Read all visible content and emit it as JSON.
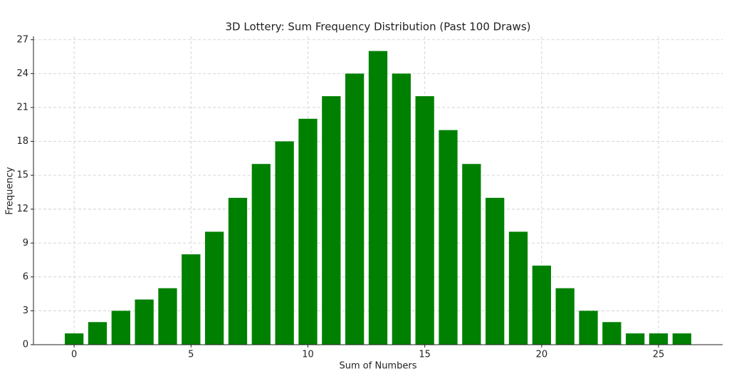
{
  "chart_data": {
    "type": "bar",
    "title": "3D Lottery: Sum Frequency Distribution (Past 100 Draws)",
    "x_label": "Sum of Numbers",
    "y_label": "Frequency",
    "x": [
      0,
      1,
      2,
      3,
      4,
      5,
      6,
      7,
      8,
      9,
      10,
      11,
      12,
      13,
      14,
      15,
      16,
      17,
      18,
      19,
      20,
      21,
      22,
      23,
      24,
      25,
      26
    ],
    "values": [
      1,
      2,
      3,
      4,
      5,
      8,
      10,
      13,
      16,
      18,
      20,
      22,
      24,
      26,
      24,
      22,
      19,
      16,
      13,
      10,
      7,
      5,
      3,
      2,
      1,
      1,
      1
    ],
    "color": "#008000",
    "xlim": [
      -1.74,
      27.74
    ],
    "xticks": [
      0,
      5,
      10,
      15,
      20,
      25
    ],
    "ylim": [
      0,
      27.3
    ],
    "yticks": [
      0,
      3,
      6,
      9,
      12,
      15,
      18,
      21,
      24,
      27
    ],
    "grid": true
  }
}
